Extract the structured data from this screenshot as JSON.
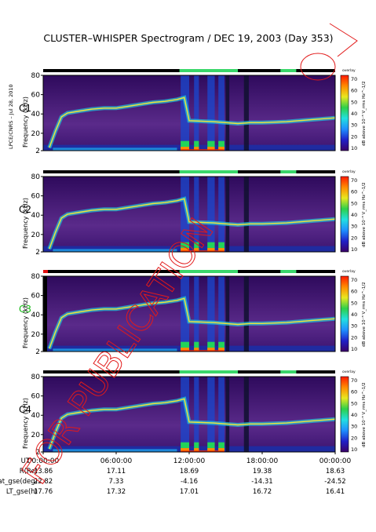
{
  "chart_data": {
    "type": "heatmap",
    "title": "CLUSTER–WHISPER Spectrogram / DEC 19, 2003 (Day 353)",
    "side_label": "LPCE/CNRS – Jul 28, 2010",
    "watermark": "FOR PUBLICATION",
    "ylabel": "Frequency (kHz)",
    "y_ticks": [
      "2",
      "20",
      "40",
      "60",
      "80"
    ],
    "ylim": [
      2,
      80
    ],
    "colorbar": {
      "label": "dB above 10⁻⁸ V_rms Hz^-1/2",
      "top_label": "overlay",
      "ticks": [
        "10",
        "20",
        "30",
        "40",
        "50",
        "60",
        "70"
      ],
      "range": [
        10,
        70
      ],
      "colors": [
        "#3a0066",
        "#2020c8",
        "#1f8fff",
        "#22e0e0",
        "#2ed04a",
        "#e8e820",
        "#ff8c00",
        "#ff1a00"
      ]
    },
    "panels": [
      {
        "name": "C1",
        "name_color": "#000000"
      },
      {
        "name": "C2",
        "name_color": "#000000"
      },
      {
        "name": "C3",
        "name_color": "#14b814"
      },
      {
        "name": "C4",
        "name_color": "#000000"
      }
    ],
    "x_ticks": [
      "00:00:00",
      "06:00:00",
      "12:00:00",
      "18:00:00",
      "00:00:00"
    ],
    "orbit_table": {
      "rows": [
        {
          "label": "UT",
          "values": []
        },
        {
          "label": "R(Re)",
          "values": [
            "13.86",
            "17.11",
            "18.69",
            "19.38",
            "18.63"
          ]
        },
        {
          "label": "Lat_gse(deg)",
          "values": [
            "22.82",
            "7.33",
            "-4.16",
            "-14.31",
            "-24.52"
          ]
        },
        {
          "label": "LT_gse(h)",
          "values": [
            "17.76",
            "17.32",
            "17.01",
            "16.72",
            "16.41"
          ]
        }
      ]
    },
    "emission_line_khz": [
      [
        0.5,
        5
      ],
      [
        1.0,
        22
      ],
      [
        1.5,
        37
      ],
      [
        2.0,
        41
      ],
      [
        3.0,
        43
      ],
      [
        4.0,
        45
      ],
      [
        5.0,
        46
      ],
      [
        6.0,
        46
      ],
      [
        7.0,
        48
      ],
      [
        8.0,
        50
      ],
      [
        9.0,
        52
      ],
      [
        10.0,
        53
      ],
      [
        11.0,
        55
      ],
      [
        11.6,
        57
      ],
      [
        12.0,
        33
      ],
      [
        14.0,
        32
      ],
      [
        16.0,
        30
      ],
      [
        17.0,
        31
      ],
      [
        18.0,
        31
      ],
      [
        20.0,
        32
      ],
      [
        22.0,
        34
      ],
      [
        24.0,
        36
      ]
    ],
    "intense_periods_h": [
      [
        11.3,
        12.0
      ],
      [
        12.4,
        12.8
      ],
      [
        13.5,
        14.1
      ],
      [
        14.4,
        14.9
      ]
    ],
    "data_gaps_h": [
      [
        15.0,
        15.3
      ],
      [
        16.5,
        16.9
      ]
    ],
    "grid": false
  }
}
